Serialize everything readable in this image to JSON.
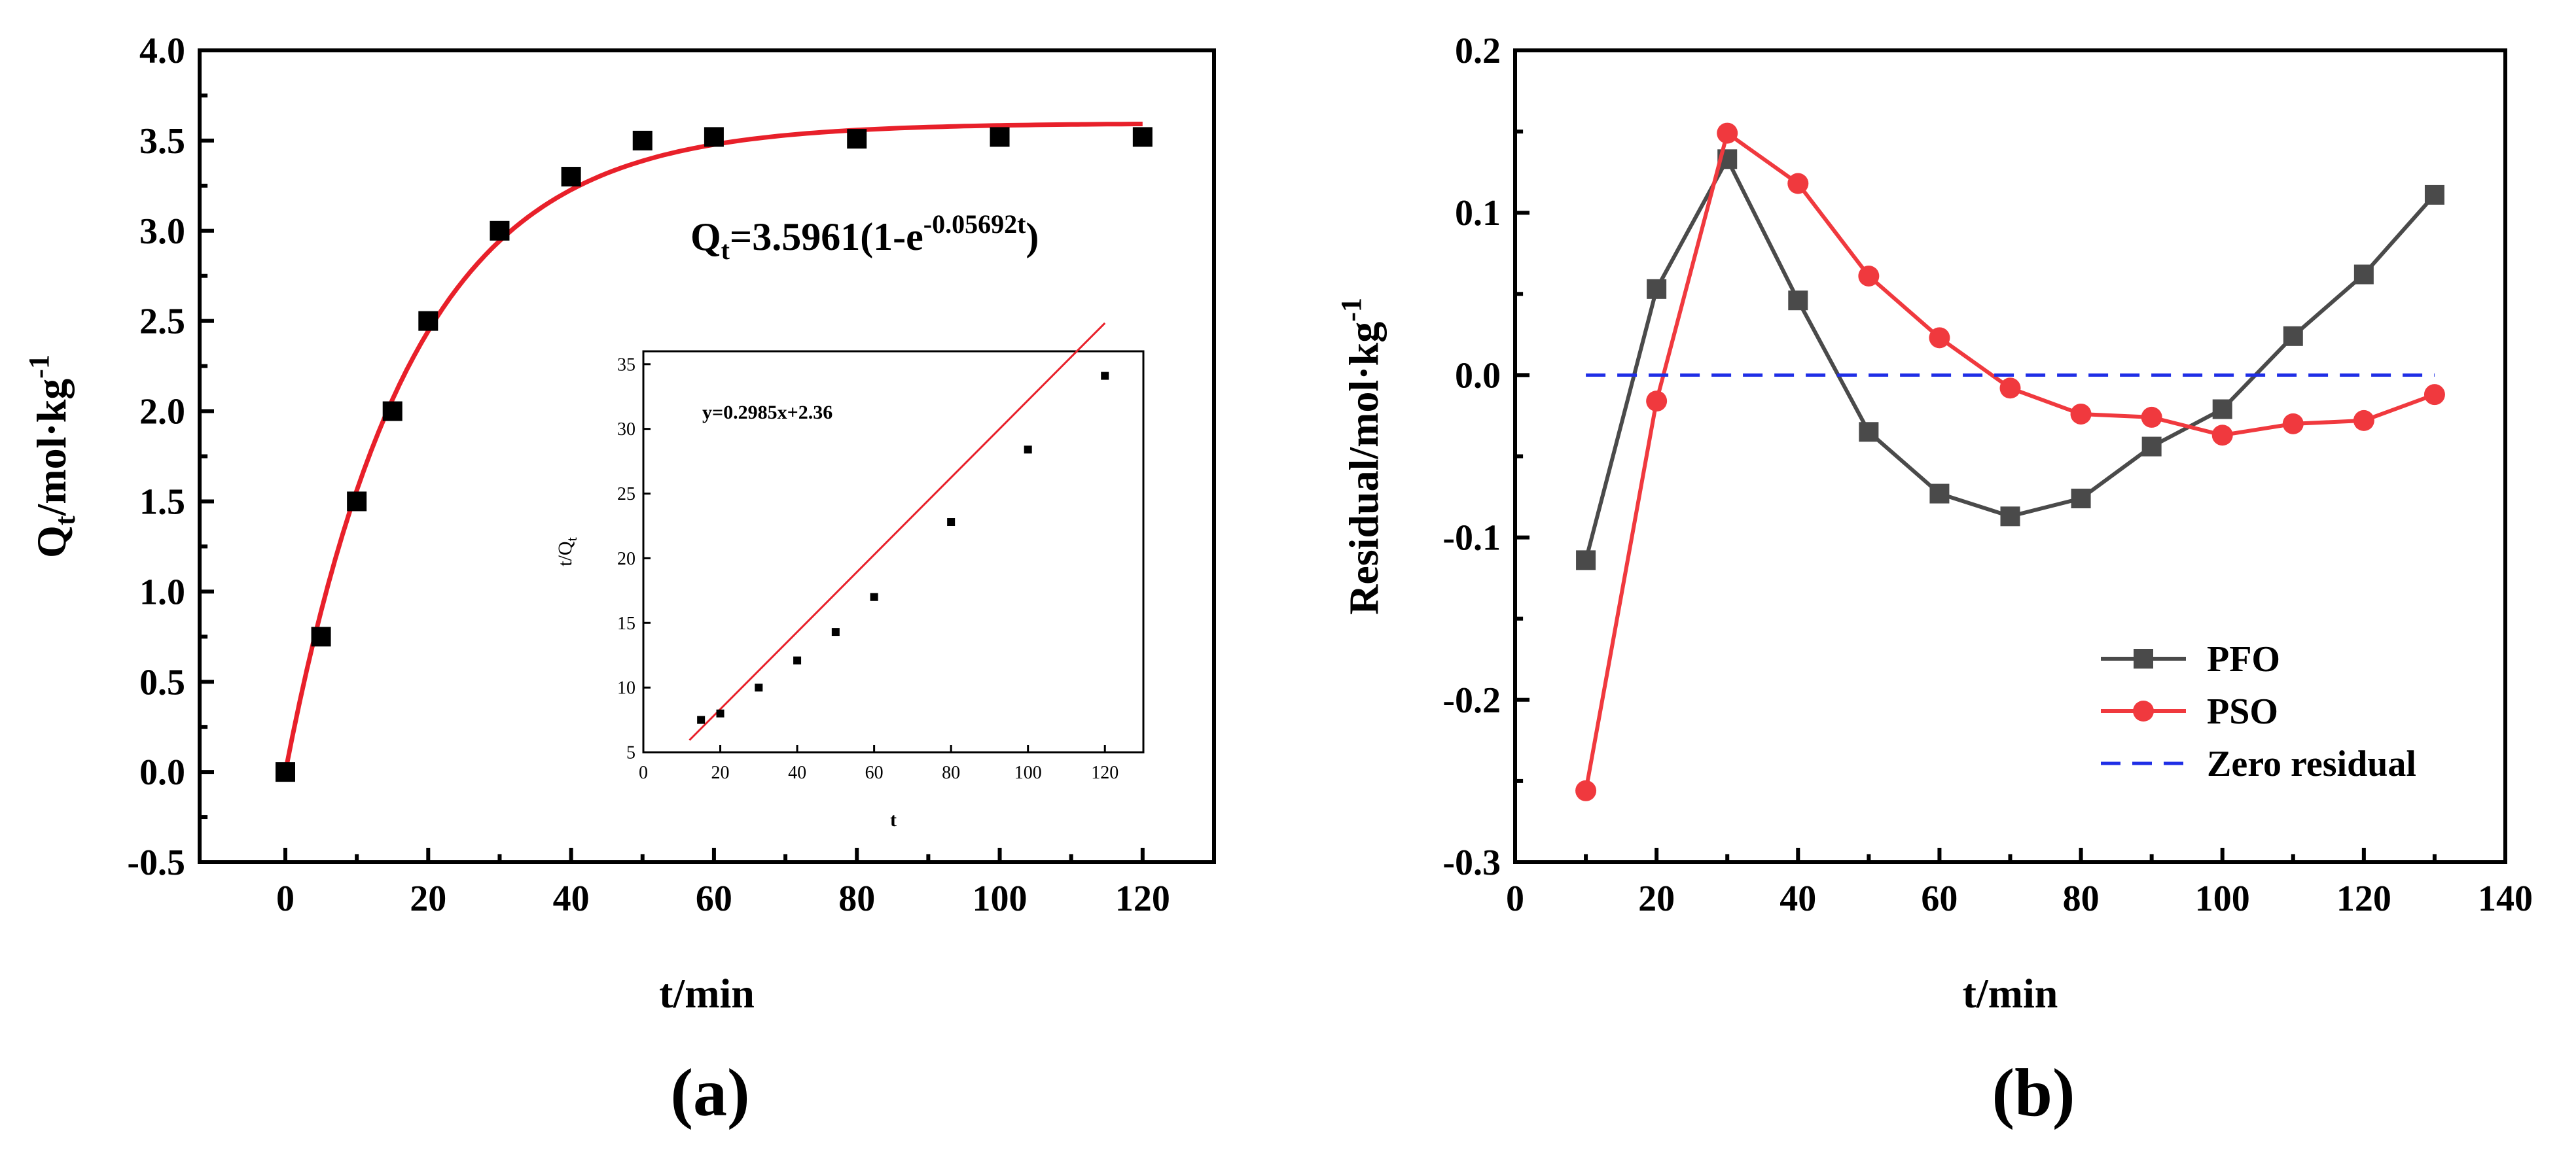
{
  "chart_data": [
    {
      "panel_label": "(a)",
      "type": "scatter",
      "xlabel": "t/min",
      "ylabel_main": "Q",
      "ylabel_sub": "t",
      "ylabel_rest": "/mol·kg",
      "ylabel_sup": "-1",
      "xlim": [
        -12,
        130
      ],
      "ylim": [
        -0.5,
        4.0
      ],
      "xticks": [
        0,
        20,
        40,
        60,
        80,
        100,
        120
      ],
      "yticks": [
        -0.5,
        0.0,
        0.5,
        1.0,
        1.5,
        2.0,
        2.5,
        3.0,
        3.5,
        4.0
      ],
      "grid": false,
      "points": {
        "x": [
          0,
          5,
          10,
          15,
          20,
          30,
          40,
          50,
          60,
          80,
          100,
          120
        ],
        "y": [
          0.0,
          0.75,
          1.5,
          2.0,
          2.5,
          3.0,
          3.3,
          3.5,
          3.52,
          3.51,
          3.52,
          3.52
        ]
      },
      "fit": {
        "qe": 3.5961,
        "k": 0.05692,
        "color": "#e8202a"
      },
      "equation": {
        "lead": "Q",
        "sub": "t",
        "mid": "=3.5961(1-e",
        "sup": "-0.05692t",
        "tail": ")"
      },
      "inset": {
        "type": "scatter",
        "xlabel": "t",
        "ylabel_main": "t/Q",
        "ylabel_sub": "t",
        "xlim": [
          0,
          130
        ],
        "ylim": [
          5,
          36
        ],
        "xticks": [
          0,
          20,
          40,
          60,
          80,
          100,
          120
        ],
        "yticks": [
          5,
          10,
          15,
          20,
          25,
          30,
          35
        ],
        "points": {
          "x": [
            15,
            20,
            30,
            40,
            50,
            60,
            80,
            100,
            120
          ],
          "y": [
            7.5,
            8.0,
            10.0,
            12.1,
            14.3,
            17.0,
            22.8,
            28.4,
            34.1
          ]
        },
        "fit": {
          "slope": 0.2985,
          "intercept": 2.36,
          "xrange": [
            12,
            120
          ],
          "color": "#e8202a"
        },
        "equation": "y=0.2985x+2.36"
      }
    },
    {
      "panel_label": "(b)",
      "type": "line",
      "xlabel": "t/min",
      "ylabel": "Residual/mol·kg",
      "ylabel_sup": "-1",
      "xlim": [
        0,
        140
      ],
      "ylim": [
        -0.3,
        0.2
      ],
      "xticks": [
        0,
        20,
        40,
        60,
        80,
        100,
        120,
        140
      ],
      "yticks": [
        -0.3,
        -0.2,
        -0.1,
        0.0,
        0.1,
        0.2
      ],
      "grid": false,
      "legend_position": "bottom-right",
      "series": [
        {
          "name": "PFO",
          "color": "#4a4a4a",
          "marker": "square",
          "x": [
            10,
            20,
            30,
            40,
            50,
            60,
            70,
            80,
            90,
            100,
            110,
            120,
            130
          ],
          "y": [
            -0.114,
            0.053,
            0.133,
            0.046,
            -0.035,
            -0.073,
            -0.087,
            -0.076,
            -0.044,
            -0.021,
            0.024,
            0.062,
            0.111
          ]
        },
        {
          "name": "PSO",
          "color": "#f0393e",
          "marker": "circle",
          "x": [
            10,
            20,
            30,
            40,
            50,
            60,
            70,
            80,
            90,
            100,
            110,
            120,
            130
          ],
          "y": [
            -0.256,
            -0.016,
            0.149,
            0.118,
            0.061,
            0.023,
            -0.008,
            -0.024,
            -0.026,
            -0.037,
            -0.03,
            -0.028,
            -0.012
          ]
        },
        {
          "name": "Zero residual",
          "color": "#1f2ee6",
          "marker": "none",
          "dashed": true,
          "x": [
            10,
            130
          ],
          "y": [
            0,
            0
          ]
        }
      ]
    }
  ]
}
